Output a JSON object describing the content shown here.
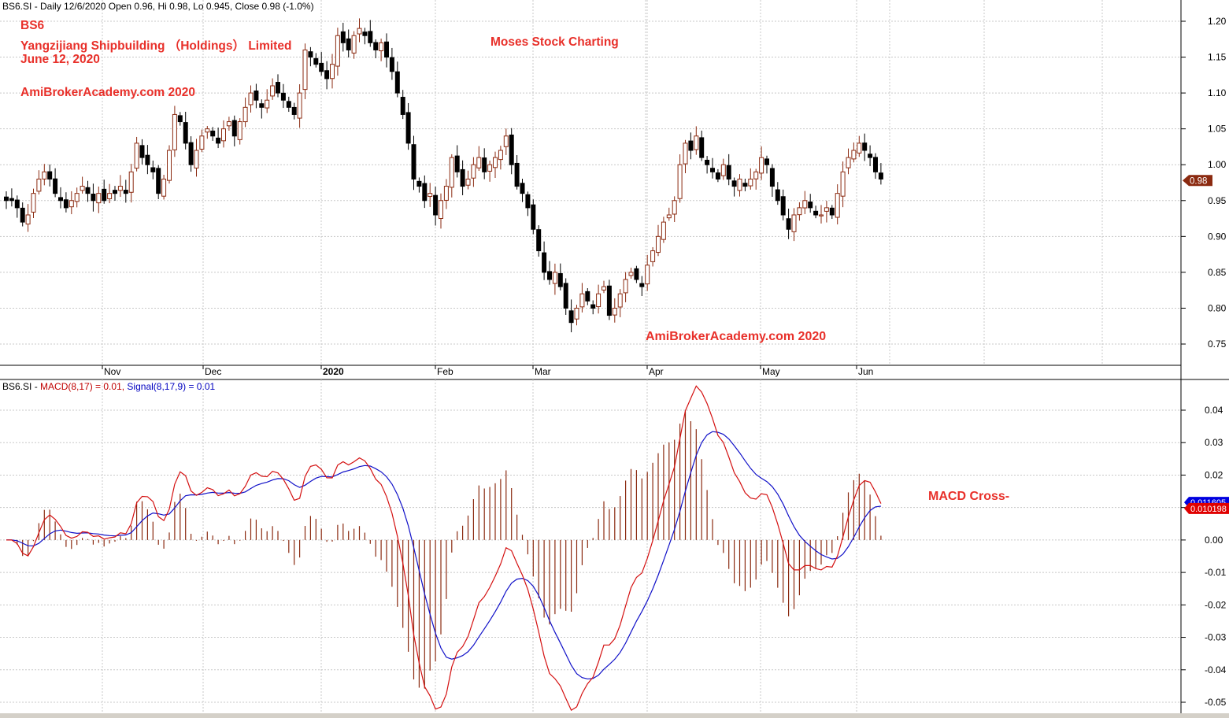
{
  "header": {
    "symbol": "BS6.SI",
    "summary": "BS6.SI - Daily 12/6/2020 Open 0.96, Hi 0.98, Lo 0.945, Close 0.98 (-1.0%)"
  },
  "annotations": {
    "ticker": "BS6",
    "company": "Yangzijiang Shipbuilding （Holdings） Limited",
    "date": "June 12, 2020",
    "site_top": "AmiBrokerAcademy.com  2020",
    "moses": "Moses Stock Charting",
    "site_bottom": "AmiBrokerAcademy.com 2020",
    "macd_note": "MACD Cross-"
  },
  "indicator_header": {
    "prefix": "BS6.SI - ",
    "macd": "MACD(8,17) = 0.01,",
    "signal": "Signal(8,17,9) = 0.01"
  },
  "colors": {
    "up_candle": "#8b2a10",
    "down_candle": "#000000",
    "macd_line": "#d41010",
    "signal_line": "#1010c8",
    "histogram": "#8b2a10",
    "grid": "#c8c8c8",
    "last_price_badge": "#8b2a10",
    "macd_badge": "#e00000",
    "signal_badge": "#0000e0"
  },
  "chart_data": [
    {
      "type": "candlestick",
      "title": "",
      "x_labels": [
        "Nov",
        "Dec",
        "2020",
        "Feb",
        "Mar",
        "Apr",
        "May",
        "Jun"
      ],
      "y_ticks": [
        0.75,
        0.8,
        0.85,
        0.9,
        0.95,
        1.0,
        1.05,
        1.1,
        1.15,
        1.2
      ],
      "ylim": [
        0.715,
        1.205
      ],
      "last_price_label": "0.98",
      "last_price": 0.978,
      "grid": true,
      "closes": [
        0.95,
        0.95,
        0.94,
        0.92,
        0.93,
        0.96,
        0.98,
        0.99,
        0.98,
        0.96,
        0.95,
        0.94,
        0.95,
        0.96,
        0.97,
        0.96,
        0.95,
        0.96,
        0.95,
        0.96,
        0.96,
        0.97,
        0.96,
        0.99,
        1.03,
        1.01,
        1.0,
        0.99,
        0.96,
        0.98,
        1.02,
        1.07,
        1.06,
        1.03,
        1.0,
        1.02,
        1.04,
        1.05,
        1.04,
        1.03,
        1.05,
        1.06,
        1.04,
        1.06,
        1.08,
        1.1,
        1.09,
        1.08,
        1.09,
        1.11,
        1.1,
        1.09,
        1.08,
        1.07,
        1.1,
        1.16,
        1.15,
        1.14,
        1.13,
        1.12,
        1.14,
        1.18,
        1.17,
        1.16,
        1.18,
        1.19,
        1.18,
        1.17,
        1.16,
        1.17,
        1.15,
        1.13,
        1.1,
        1.07,
        1.03,
        0.98,
        0.97,
        0.95,
        0.96,
        0.93,
        0.95,
        0.97,
        1.01,
        0.99,
        0.97,
        0.98,
        1.0,
        1.01,
        0.99,
        1.0,
        1.01,
        1.02,
        1.04,
        1.0,
        0.97,
        0.96,
        0.94,
        0.91,
        0.88,
        0.85,
        0.84,
        0.85,
        0.83,
        0.8,
        0.78,
        0.8,
        0.82,
        0.81,
        0.8,
        0.82,
        0.83,
        0.79,
        0.8,
        0.82,
        0.84,
        0.85,
        0.84,
        0.83,
        0.86,
        0.88,
        0.9,
        0.92,
        0.93,
        0.95,
        1.0,
        1.03,
        1.02,
        1.04,
        1.01,
        1.0,
        0.99,
        0.98,
        1.0,
        0.98,
        0.97,
        0.98,
        0.97,
        0.98,
        0.99,
        1.01,
        1.0,
        0.97,
        0.95,
        0.93,
        0.91,
        0.93,
        0.94,
        0.95,
        0.94,
        0.93,
        0.93,
        0.94,
        0.93,
        0.96,
        0.99,
        1.01,
        1.02,
        1.03,
        1.02,
        1.01,
        0.99,
        0.98
      ],
      "date_labels_under_axis": true
    },
    {
      "type": "line",
      "title": "",
      "series": [
        {
          "name": "MACD(8,17)",
          "last_value": 0.01
        },
        {
          "name": "Signal(8,17,9)",
          "last_value": 0.01
        }
      ],
      "y_ticks": [
        -0.05,
        -0.04,
        -0.03,
        -0.02,
        -0.01,
        0.0,
        0.01,
        0.02,
        0.03,
        0.04
      ],
      "y_tick_labels": [
        "-0.05",
        "-0.04",
        "-0.03",
        "-0.02",
        "-0.01",
        "0.00",
        "0.01",
        "0.02",
        "0.03",
        "0.04"
      ],
      "ylim": [
        -0.0522,
        0.0458
      ],
      "macd_badge_label": "0.010198",
      "signal_badge_label": "0.011605",
      "histogram": true,
      "grid": true
    }
  ]
}
